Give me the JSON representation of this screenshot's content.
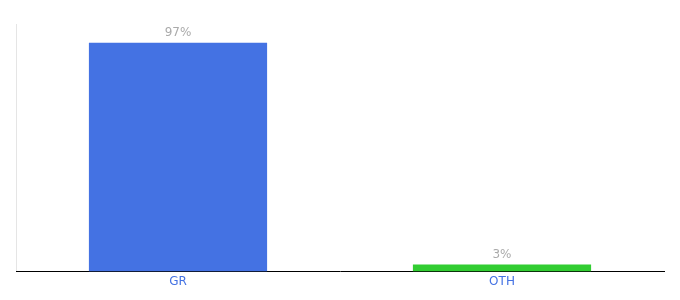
{
  "chart_data": {
    "type": "bar",
    "categories": [
      "GR",
      "OTH"
    ],
    "values": [
      97,
      3
    ],
    "value_labels": [
      "97%",
      "3%"
    ],
    "colors": [
      "#4472e3",
      "#32cd32"
    ],
    "ylim": [
      0,
      105
    ],
    "data_labels": true,
    "tick_labels": "x",
    "grid": false
  }
}
